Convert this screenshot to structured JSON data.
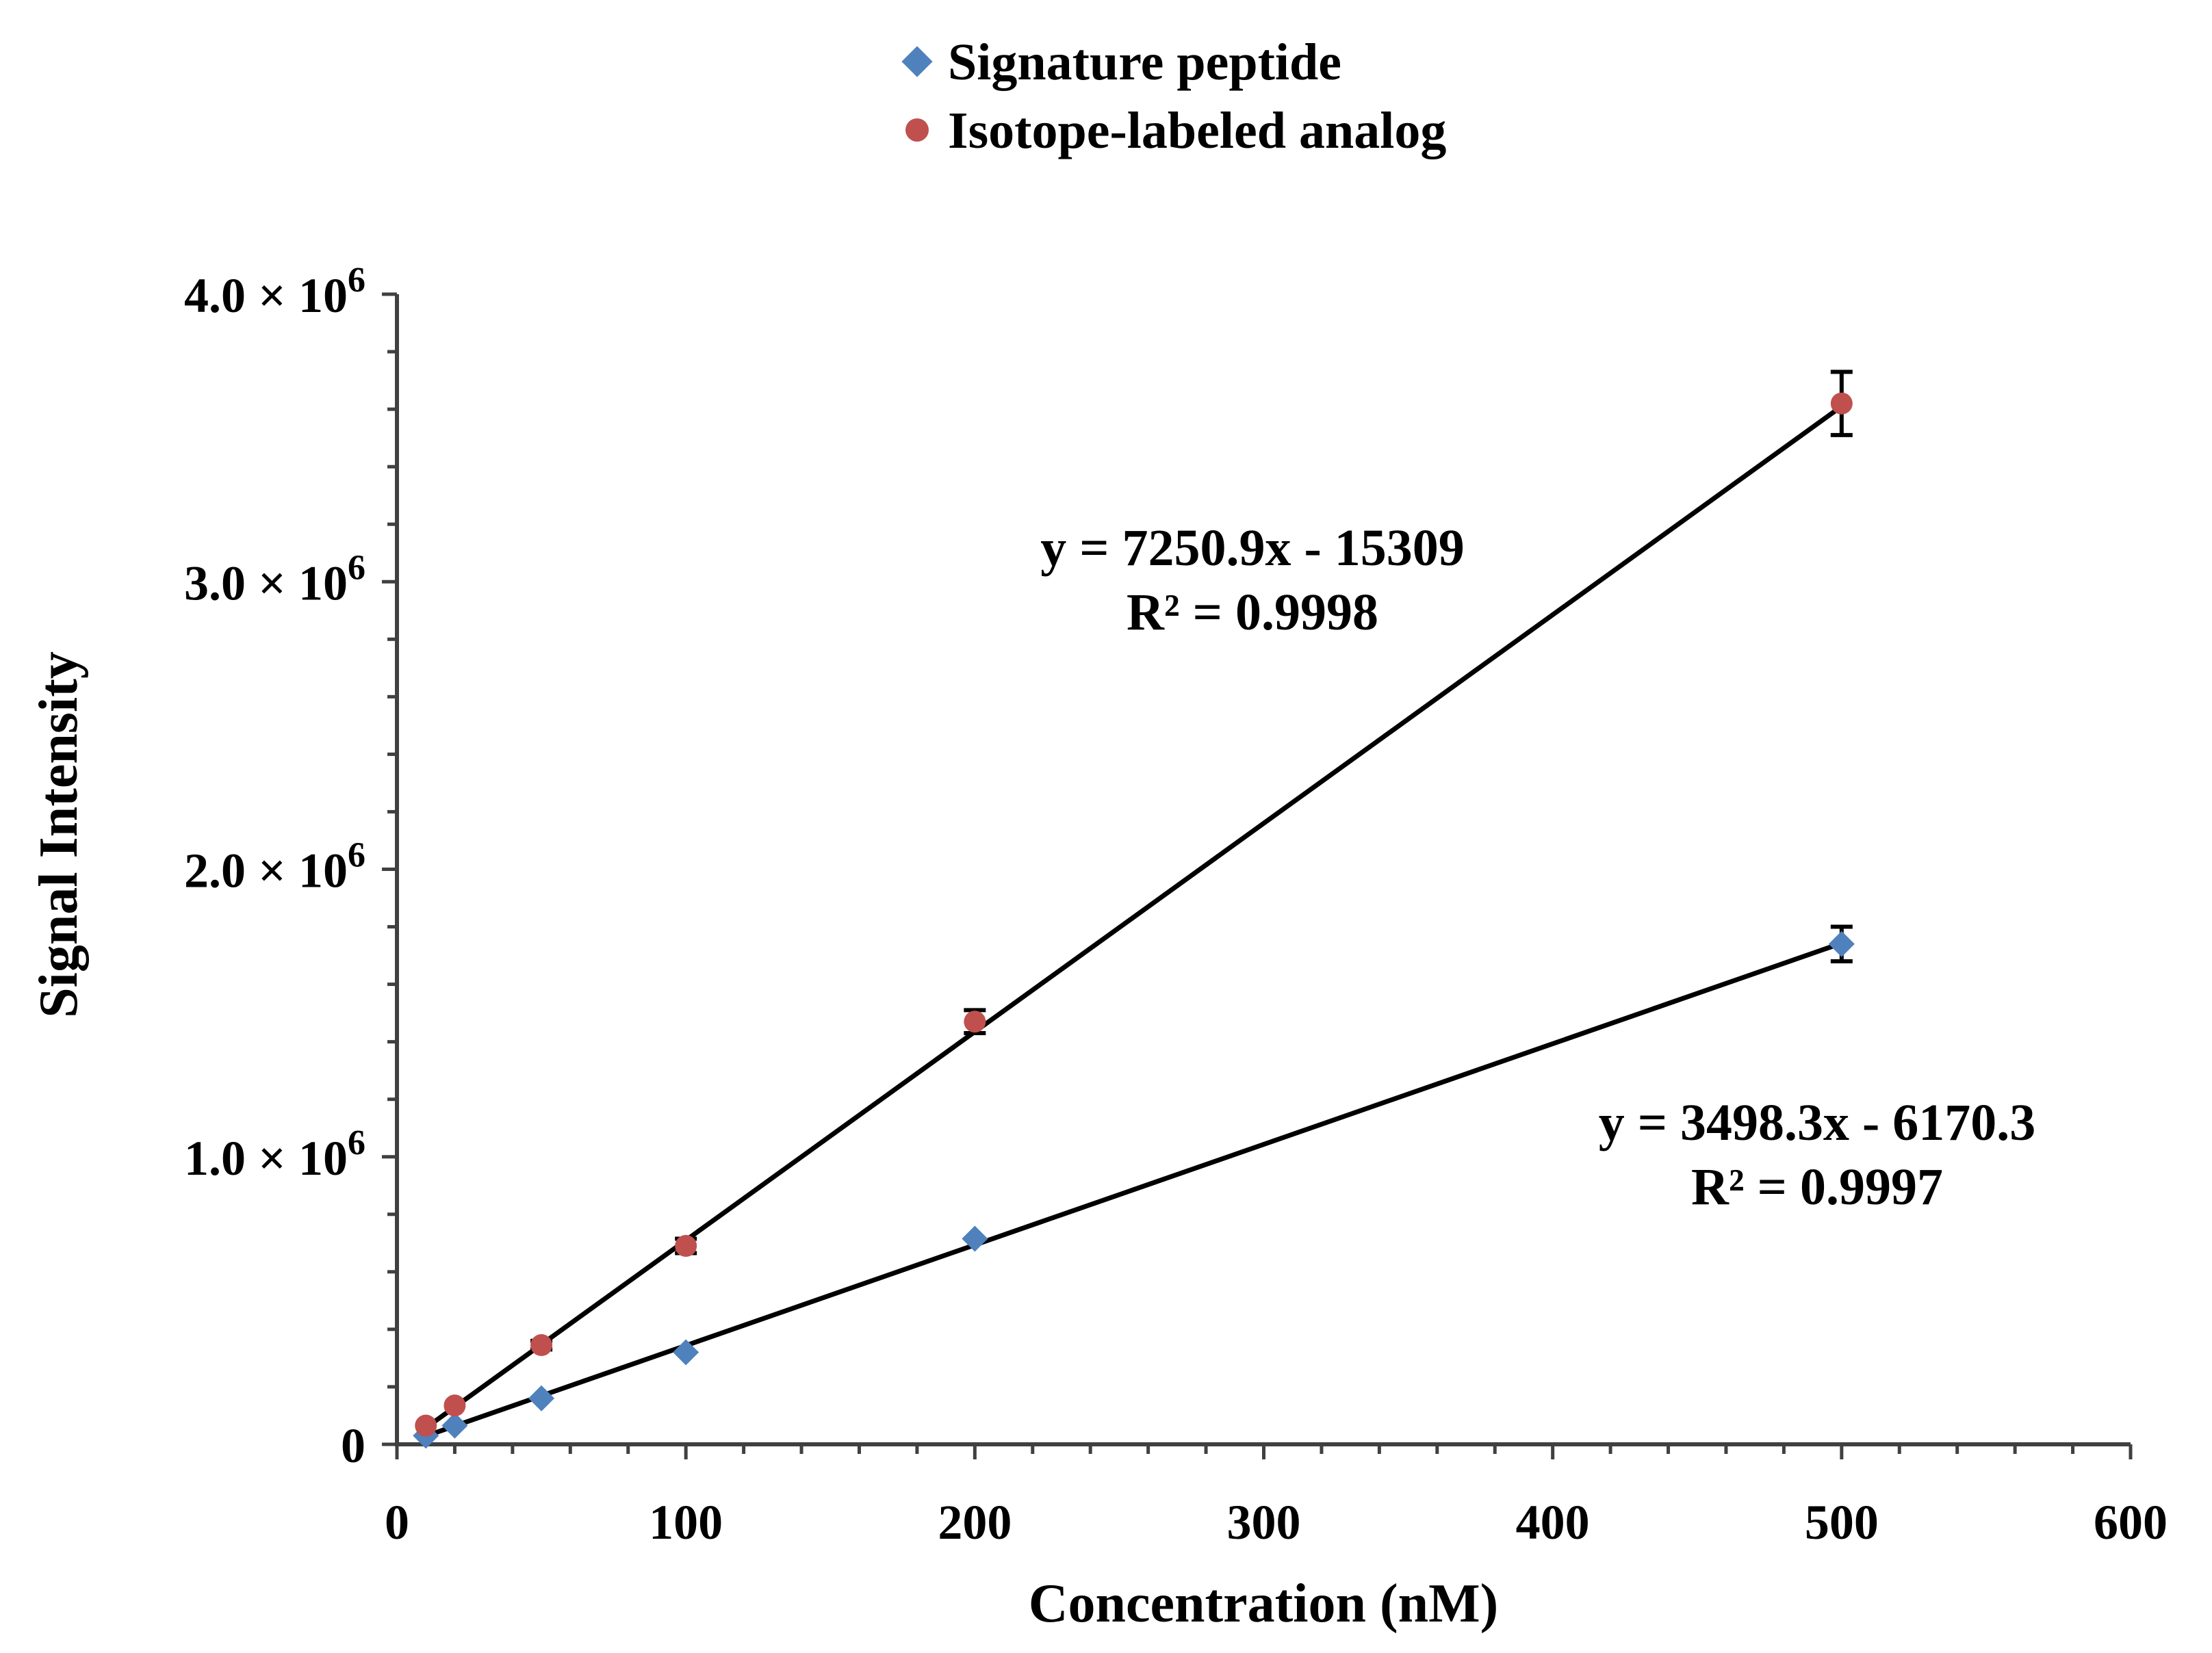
{
  "chart_data": {
    "type": "scatter",
    "xlabel": "Concentration (nM)",
    "ylabel": "Signal Intensity",
    "xlim": [
      0,
      600
    ],
    "ylim": [
      0,
      4000000
    ],
    "x_ticks": [
      0,
      100,
      200,
      300,
      400,
      500,
      600
    ],
    "y_ticks": [
      {
        "value": 0,
        "mantissa": "0",
        "exponent": ""
      },
      {
        "value": 1000000,
        "mantissa": "1.0 × 10",
        "exponent": "6"
      },
      {
        "value": 2000000,
        "mantissa": "2.0 × 10",
        "exponent": "6"
      },
      {
        "value": 3000000,
        "mantissa": "3.0 × 10",
        "exponent": "6"
      },
      {
        "value": 4000000,
        "mantissa": "4.0 × 10",
        "exponent": "6"
      }
    ],
    "legend_position": "top-center",
    "series": [
      {
        "name": "Signature peptide",
        "marker": "diamond",
        "color": "#4F81BD",
        "points": [
          {
            "x": 10,
            "y": 30000,
            "err": 0
          },
          {
            "x": 20,
            "y": 65000,
            "err": 0
          },
          {
            "x": 50,
            "y": 160000,
            "err": 0
          },
          {
            "x": 100,
            "y": 320000,
            "err": 0
          },
          {
            "x": 200,
            "y": 715000,
            "err": 0
          },
          {
            "x": 500,
            "y": 1740000,
            "err": 60000
          }
        ],
        "trendline": {
          "slope": 3498.3,
          "intercept": -6170.3,
          "x_range": [
            10,
            500
          ]
        },
        "equation": "y = 3498.3x - 6170.3",
        "r_squared": "R² = 0.9997"
      },
      {
        "name": "Isotope-labeled analog",
        "marker": "circle",
        "color": "#C0504D",
        "points": [
          {
            "x": 10,
            "y": 65000,
            "err": 0
          },
          {
            "x": 20,
            "y": 135000,
            "err": 0
          },
          {
            "x": 50,
            "y": 345000,
            "err": 15000
          },
          {
            "x": 100,
            "y": 690000,
            "err": 25000
          },
          {
            "x": 200,
            "y": 1470000,
            "err": 40000
          },
          {
            "x": 500,
            "y": 3620000,
            "err": 110000
          }
        ],
        "trendline": {
          "slope": 7250.9,
          "intercept": -15309,
          "x_range": [
            10,
            500
          ]
        },
        "equation": "y = 7250.9x - 15309",
        "r_squared": "R² = 0.9998"
      }
    ]
  }
}
